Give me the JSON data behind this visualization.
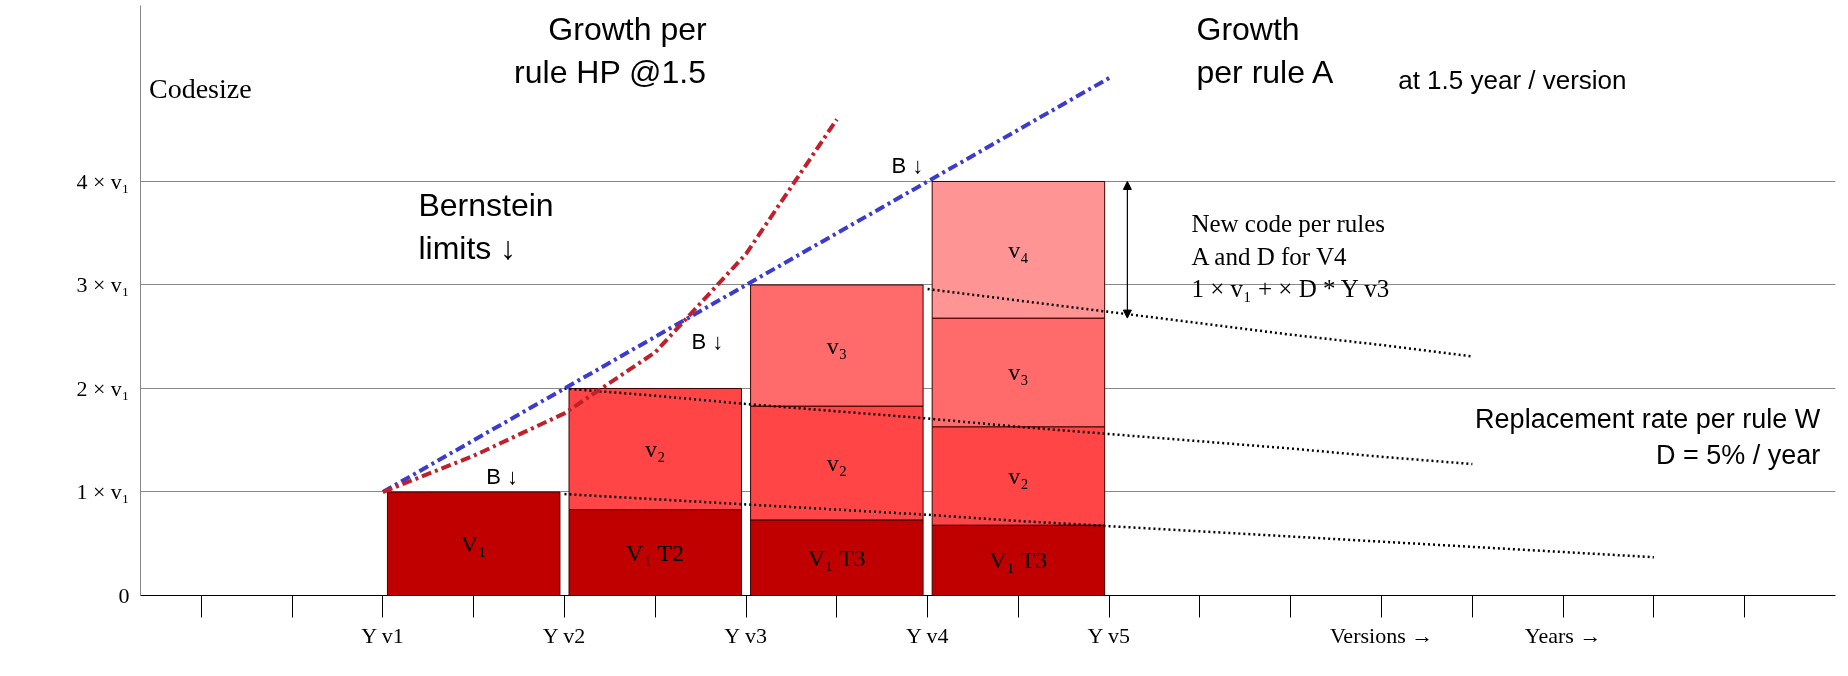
{
  "chart_data": {
    "type": "bar",
    "stacked": true,
    "ylabel": "Codesize",
    "categories": [
      null,
      null,
      "Y v1",
      null,
      "Y v2",
      null,
      "Y v3",
      null,
      "Y v4",
      null,
      "Y v5",
      null,
      null,
      "Versions →",
      null,
      "Years →",
      null,
      null
    ],
    "series": [
      {
        "color": "#c00000",
        "values": [
          null,
          null,
          null,
          1,
          null,
          0.83,
          null,
          0.73,
          null,
          0.68,
          null,
          null,
          null,
          null,
          null,
          null,
          null,
          null
        ],
        "value_labels": [
          null,
          null,
          null,
          "V₁",
          null,
          "V₁ T2",
          null,
          "V₁ T3",
          null,
          "V₁ T3",
          null,
          null,
          null,
          null,
          null,
          null,
          null,
          null
        ]
      },
      {
        "color": "#ff4545",
        "values": [
          null,
          null,
          null,
          null,
          null,
          1.17,
          null,
          1.1,
          null,
          0.95,
          null,
          null,
          null,
          null,
          null,
          null,
          null,
          null
        ],
        "value_labels": [
          null,
          null,
          null,
          null,
          null,
          "v₂",
          null,
          "v₂",
          null,
          "v₂",
          null,
          null,
          null,
          null,
          null,
          null,
          null,
          null
        ]
      },
      {
        "color": "#ff6a6a",
        "values": [
          null,
          null,
          null,
          null,
          null,
          null,
          null,
          1.17,
          null,
          1.05,
          null,
          null,
          null,
          null,
          null,
          null,
          null,
          null
        ],
        "value_labels": [
          null,
          null,
          null,
          null,
          null,
          null,
          null,
          "v₃",
          null,
          "v₃",
          null,
          null,
          null,
          null,
          null,
          null,
          null,
          null
        ]
      },
      {
        "color": "#ff9494",
        "values": [
          null,
          null,
          null,
          null,
          null,
          null,
          null,
          null,
          null,
          1.32,
          null,
          null,
          null,
          null,
          null,
          null,
          null,
          null
        ],
        "value_labels": [
          null,
          null,
          null,
          null,
          null,
          null,
          null,
          null,
          null,
          "v₄",
          null,
          null,
          null,
          null,
          null,
          null,
          null,
          null
        ]
      },
      {
        "type": "line",
        "color": "#c0202a",
        "line_style": "dashdot",
        "values": [
          null,
          null,
          1,
          1.35,
          1.76,
          2.35,
          3.3,
          4.6,
          null,
          null,
          null,
          null,
          null,
          null,
          null,
          null,
          null,
          null
        ]
      },
      {
        "type": "line",
        "color": "#3b3bd0",
        "line_style": "dashdot",
        "values": [
          null,
          null,
          1,
          1.5,
          2,
          2.5,
          3,
          3.5,
          4,
          4.5,
          5,
          null,
          null,
          null,
          null,
          null,
          null,
          null
        ]
      },
      {
        "type": "line",
        "color": "#000000",
        "line_style": "dotted",
        "values": [
          null,
          null,
          null,
          null,
          0.98,
          0.93,
          0.88,
          0.83,
          0.78,
          0.72,
          0.67,
          0.62,
          0.57,
          0.52,
          0.47,
          0.42,
          0.37,
          null
        ]
      },
      {
        "type": "line",
        "color": "#000000",
        "line_style": "dotted",
        "values": [
          null,
          null,
          null,
          null,
          2,
          1.93,
          1.85,
          1.78,
          1.71,
          1.63,
          1.56,
          1.49,
          1.42,
          1.34,
          1.27,
          null,
          null,
          null
        ]
      },
      {
        "type": "line",
        "color": "#000000",
        "line_style": "dotted",
        "values": [
          null,
          null,
          null,
          null,
          null,
          null,
          null,
          null,
          2.96,
          2.85,
          2.74,
          2.63,
          2.52,
          2.42,
          2.31,
          null,
          null,
          null
        ]
      }
    ],
    "ylim": [
      0,
      5.7
    ],
    "yticks": [
      {
        "value": 0,
        "label": "0"
      },
      {
        "value": 1,
        "label": "1 × v₁"
      },
      {
        "value": 2,
        "label": "2 × v₁"
      },
      {
        "value": 3,
        "label": "3 × v₁"
      },
      {
        "value": 4,
        "label": "4 × v₁"
      }
    ],
    "grid": "y",
    "marker": "none",
    "annotations": [
      "Growth per\nrule HP @1.5",
      "Growth\nper rule A",
      "at 1.5 year / version",
      "Bernstein\nlimits ↓",
      "New code per rules\n A and D for V4\n 1 × v₁ + × D * Y v3",
      "Replacement rate per rule W\nD = 5% / year",
      "B ↓",
      "B ↓",
      "B ↓"
    ]
  }
}
